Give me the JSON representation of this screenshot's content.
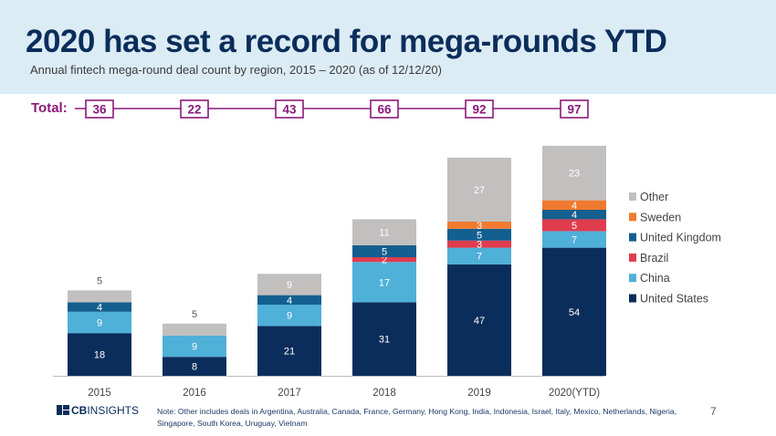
{
  "header": {
    "title": "2020 has set a record for mega-rounds YTD",
    "subtitle": "Annual fintech mega-round deal count by region, 2015 – 2020 (as of 12/12/20)",
    "total_label": "Total:"
  },
  "chart_data": {
    "type": "bar",
    "stacked": true,
    "categories": [
      "2015",
      "2016",
      "2017",
      "2018",
      "2019",
      "2020(YTD)"
    ],
    "totals": [
      36,
      22,
      43,
      66,
      92,
      97
    ],
    "series": [
      {
        "name": "United States",
        "color": "#0b2d5b",
        "values": [
          18,
          8,
          21,
          31,
          47,
          54
        ]
      },
      {
        "name": "China",
        "color": "#4fb0d8",
        "values": [
          9,
          9,
          9,
          17,
          7,
          7
        ]
      },
      {
        "name": "Brazil",
        "color": "#e03c4e",
        "values": [
          0,
          0,
          0,
          2,
          3,
          5
        ]
      },
      {
        "name": "United Kingdom",
        "color": "#135f8f",
        "values": [
          4,
          0,
          4,
          5,
          5,
          4
        ]
      },
      {
        "name": "Sweden",
        "color": "#f07a2f",
        "values": [
          0,
          0,
          0,
          0,
          3,
          4
        ]
      },
      {
        "name": "Other",
        "color": "#c2bfbf",
        "values": [
          5,
          5,
          9,
          11,
          27,
          23
        ]
      }
    ],
    "legend_position": "right",
    "grid": false,
    "ylim": [
      0,
      100
    ]
  },
  "footer": {
    "logo_cb": "CB",
    "logo_insights": "INSIGHTS",
    "note": "Note: Other includes deals in Argentina, Australia, Canada, France, Germany, Hong Kong, India, Indonesia, Israel, Italy, Mexico, Netherlands, Nigeria, Singapore, South Korea, Uruguay, Vietnam",
    "page_number": "7"
  }
}
